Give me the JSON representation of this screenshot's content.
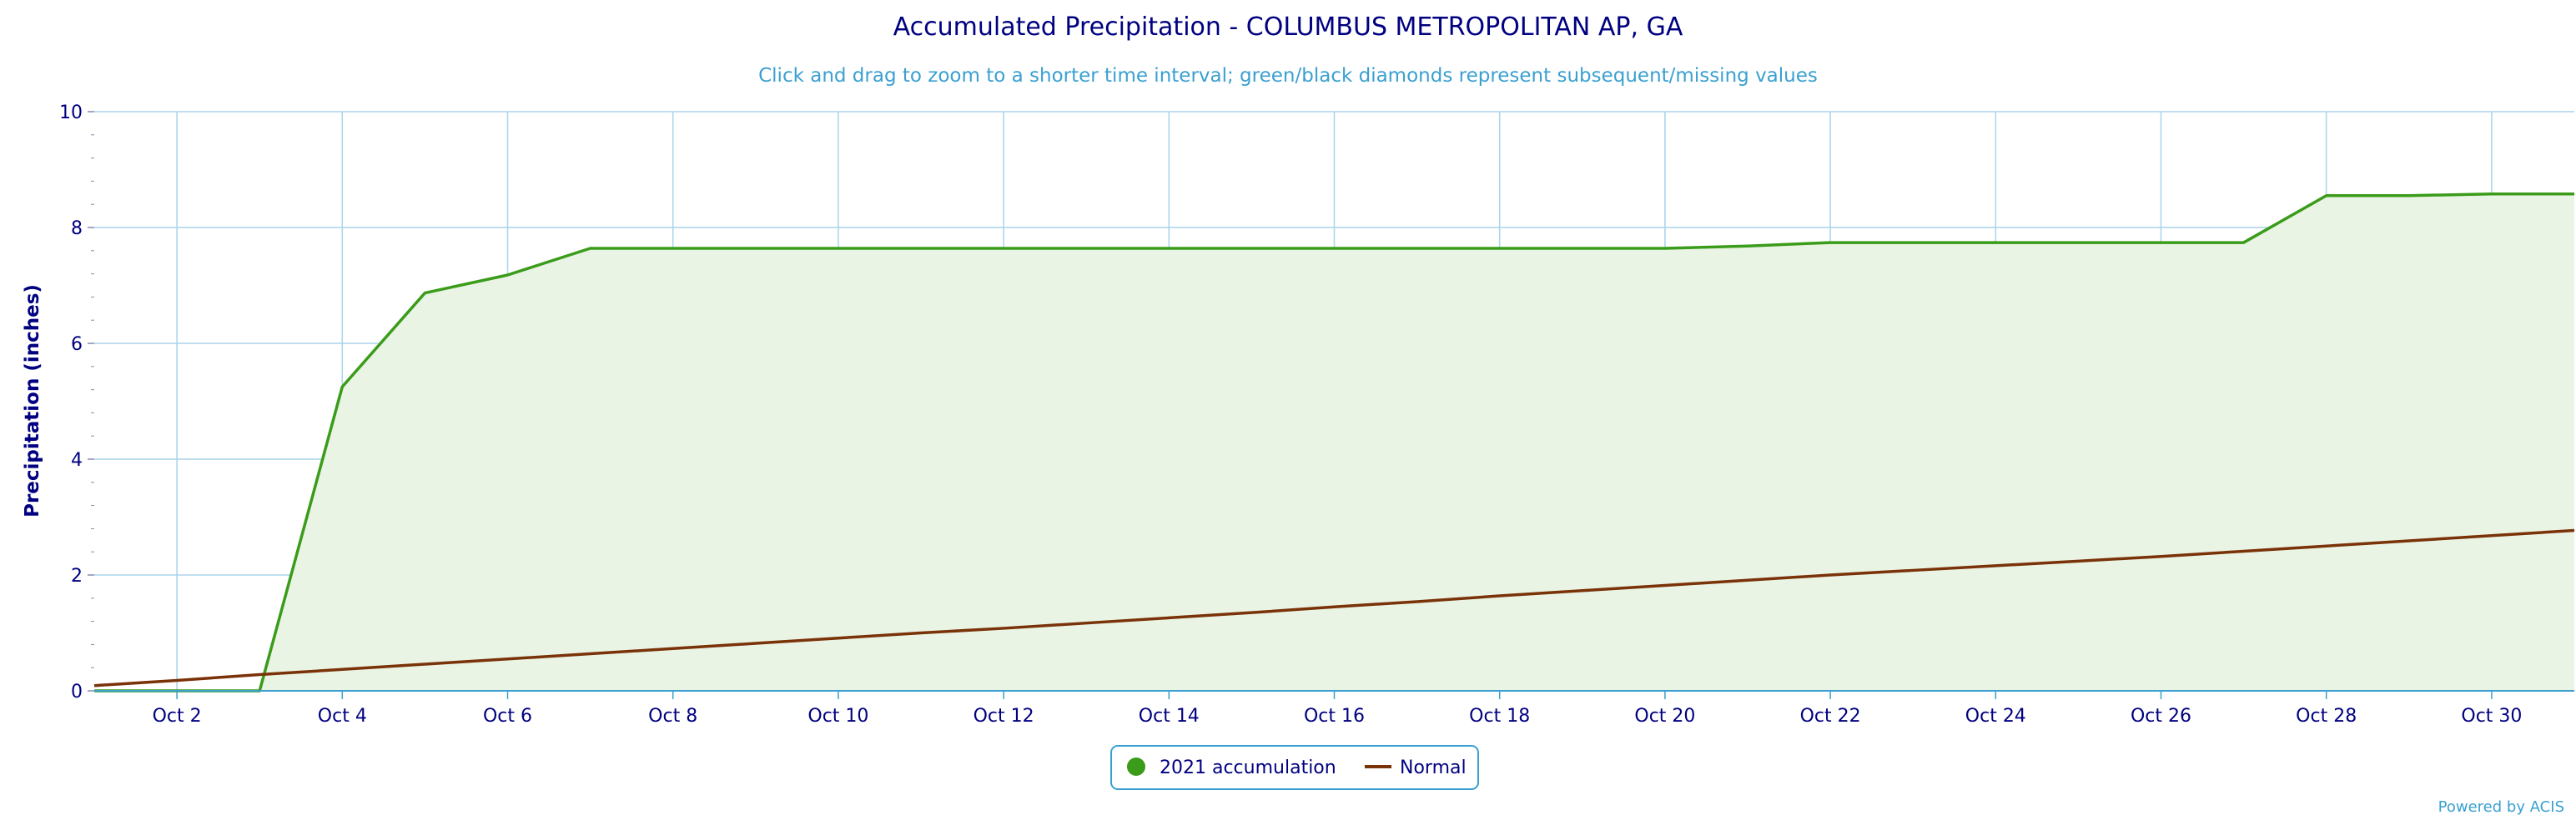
{
  "chart_data": {
    "type": "area",
    "title": "Accumulated Precipitation - COLUMBUS METROPOLITAN AP, GA",
    "subtitle": "Click and drag to zoom to a shorter time interval; green/black diamonds represent subsequent/missing values",
    "ylabel": "Precipitation (inches)",
    "xlabel": "",
    "ylim": [
      0,
      10
    ],
    "xlim": [
      1,
      31
    ],
    "yticks": [
      0,
      2,
      4,
      6,
      8,
      10
    ],
    "xticks": [
      {
        "day": 2,
        "label": "Oct 2"
      },
      {
        "day": 4,
        "label": "Oct 4"
      },
      {
        "day": 6,
        "label": "Oct 6"
      },
      {
        "day": 8,
        "label": "Oct 8"
      },
      {
        "day": 10,
        "label": "Oct 10"
      },
      {
        "day": 12,
        "label": "Oct 12"
      },
      {
        "day": 14,
        "label": "Oct 14"
      },
      {
        "day": 16,
        "label": "Oct 16"
      },
      {
        "day": 18,
        "label": "Oct 18"
      },
      {
        "day": 20,
        "label": "Oct 20"
      },
      {
        "day": 22,
        "label": "Oct 22"
      },
      {
        "day": 24,
        "label": "Oct 24"
      },
      {
        "day": 26,
        "label": "Oct 26"
      },
      {
        "day": 28,
        "label": "Oct 28"
      },
      {
        "day": 30,
        "label": "Oct 30"
      }
    ],
    "grid": true,
    "legend_position": "bottom-center",
    "series": [
      {
        "name": "2021 accumulation",
        "color": "#3a9c1a",
        "fill": "#eaf4e4",
        "x": [
          1,
          2,
          3,
          4,
          5,
          6,
          7,
          8,
          9,
          10,
          11,
          12,
          13,
          14,
          15,
          16,
          17,
          18,
          19,
          20,
          21,
          22,
          23,
          24,
          25,
          26,
          27,
          28,
          29,
          30,
          31
        ],
        "values": [
          0,
          0,
          0,
          5.25,
          6.87,
          7.18,
          7.64,
          7.64,
          7.64,
          7.64,
          7.64,
          7.64,
          7.64,
          7.64,
          7.64,
          7.64,
          7.64,
          7.64,
          7.64,
          7.64,
          7.68,
          7.74,
          7.74,
          7.74,
          7.74,
          7.74,
          7.74,
          8.55,
          8.55,
          8.58,
          8.58
        ]
      },
      {
        "name": "Normal",
        "color": "#7a3209",
        "x": [
          1,
          2,
          3,
          4,
          5,
          6,
          7,
          8,
          9,
          10,
          11,
          12,
          13,
          14,
          15,
          16,
          17,
          18,
          19,
          20,
          21,
          22,
          23,
          24,
          25,
          26,
          27,
          28,
          29,
          30,
          31
        ],
        "values": [
          0.09,
          0.18,
          0.28,
          0.37,
          0.46,
          0.55,
          0.64,
          0.73,
          0.82,
          0.91,
          1.0,
          1.08,
          1.17,
          1.26,
          1.35,
          1.45,
          1.54,
          1.64,
          1.73,
          1.82,
          1.91,
          2.0,
          2.08,
          2.16,
          2.24,
          2.32,
          2.41,
          2.5,
          2.59,
          2.68,
          2.77
        ]
      }
    ],
    "credit": "Powered by ACIS"
  }
}
